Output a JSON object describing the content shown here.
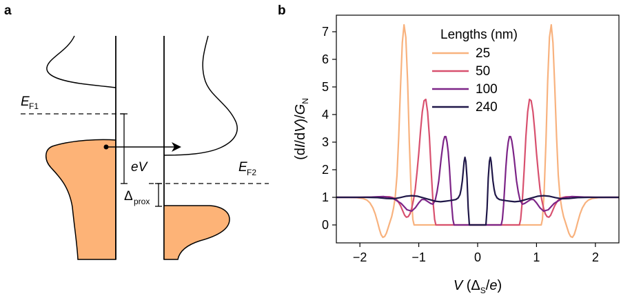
{
  "panel_a": {
    "label": "a",
    "ef1_main": "E",
    "ef1_sub": "F1",
    "ef2_main": "E",
    "ef2_sub": "F2",
    "ev": "eV",
    "delta_main": "Δ",
    "delta_sub": "prox",
    "fill_color": "#fdb377"
  },
  "panel_b": {
    "label": "b"
  },
  "chart_data": {
    "type": "line",
    "ylabel_parts": [
      "(d",
      "I",
      "/d",
      "V",
      ")/",
      "G",
      "N"
    ],
    "xlabel_parts": [
      "V",
      " (Δ",
      "S",
      "/",
      "e",
      ")"
    ],
    "xlim": [
      -2.4,
      2.4
    ],
    "ylim": [
      -0.65,
      7.6
    ],
    "xticks": [
      -2,
      -1,
      0,
      1,
      2
    ],
    "xtick_labels": [
      "−2",
      "−1",
      "0",
      "1",
      "2"
    ],
    "yticks": [
      0,
      1,
      2,
      3,
      4,
      5,
      6,
      7
    ],
    "ytick_labels": [
      "0",
      "1",
      "2",
      "3",
      "4",
      "5",
      "6",
      "7"
    ],
    "legend": {
      "title": "Lengths (nm)",
      "placement": "top-center"
    },
    "series": [
      {
        "name": "25",
        "color": "#f8b27e",
        "x": [
          0,
          1.08,
          1.1,
          1.13,
          1.16,
          1.19,
          1.22,
          1.25,
          1.28,
          1.31,
          1.34,
          1.37,
          1.4,
          1.43,
          1.46,
          1.49,
          1.52,
          1.55,
          1.58,
          1.61,
          1.64,
          1.67,
          1.7,
          1.74,
          1.78,
          1.83,
          1.88,
          1.95,
          2.05,
          2.2,
          2.4
        ],
        "y": [
          0,
          0,
          0.2,
          1.2,
          3.0,
          5.2,
          6.8,
          7.25,
          6.6,
          5.0,
          3.2,
          1.8,
          1.0,
          0.6,
          0.3,
          0.1,
          -0.1,
          -0.3,
          -0.42,
          -0.45,
          -0.35,
          -0.15,
          0.1,
          0.4,
          0.62,
          0.8,
          0.9,
          0.96,
          0.99,
          1.0,
          1.0
        ]
      },
      {
        "name": "50",
        "color": "#d8506e",
        "x": [
          0,
          0.71,
          0.73,
          0.76,
          0.79,
          0.82,
          0.85,
          0.88,
          0.91,
          0.94,
          0.97,
          1.0,
          1.03,
          1.06,
          1.09,
          1.12,
          1.15,
          1.18,
          1.21,
          1.24,
          1.27,
          1.31,
          1.36,
          1.42,
          1.5,
          1.6,
          1.75,
          1.95,
          2.2,
          2.4
        ],
        "y": [
          0,
          0,
          0.2,
          0.9,
          2.0,
          3.2,
          4.1,
          4.55,
          4.5,
          4.1,
          3.4,
          2.6,
          1.9,
          1.3,
          0.9,
          0.6,
          0.4,
          0.3,
          0.28,
          0.35,
          0.5,
          0.7,
          0.88,
          0.98,
          1.02,
          1.02,
          1.01,
          1.0,
          1.0,
          1.0
        ]
      },
      {
        "name": "100",
        "color": "#7c2487",
        "x": [
          0,
          0.4,
          0.42,
          0.44,
          0.46,
          0.48,
          0.5,
          0.52,
          0.54,
          0.56,
          0.58,
          0.6,
          0.62,
          0.64,
          0.66,
          0.69,
          0.72,
          0.76,
          0.8,
          0.85,
          0.9,
          0.95,
          1.0,
          1.06,
          1.12,
          1.2,
          1.3,
          1.45,
          1.6,
          1.8,
          2.0,
          2.4
        ],
        "y": [
          0,
          0,
          0.2,
          0.7,
          1.4,
          2.1,
          2.65,
          3.0,
          3.2,
          3.2,
          3.05,
          2.75,
          2.4,
          2.0,
          1.6,
          1.2,
          0.9,
          0.75,
          0.78,
          0.85,
          0.92,
          0.92,
          0.8,
          0.62,
          0.5,
          0.55,
          0.78,
          0.98,
          1.03,
          1.01,
          1.0,
          1.0
        ]
      },
      {
        "name": "240",
        "color": "#1f1748",
        "x": [
          0,
          0.14,
          0.16,
          0.18,
          0.2,
          0.215,
          0.23,
          0.245,
          0.26,
          0.28,
          0.3,
          0.33,
          0.37,
          0.42,
          0.48,
          0.55,
          0.63,
          0.72,
          0.82,
          0.92,
          1.02,
          1.12,
          1.22,
          1.32,
          1.42,
          1.55,
          1.7,
          1.9,
          2.1,
          2.4
        ],
        "y": [
          0,
          0,
          0.6,
          1.7,
          2.3,
          2.45,
          2.3,
          1.95,
          1.6,
          1.3,
          1.1,
          0.98,
          0.92,
          0.9,
          0.88,
          0.86,
          0.84,
          0.86,
          0.92,
          0.98,
          1.04,
          1.06,
          1.04,
          0.99,
          0.95,
          0.96,
          0.99,
          1.0,
          1.0,
          1.0
        ]
      }
    ]
  }
}
